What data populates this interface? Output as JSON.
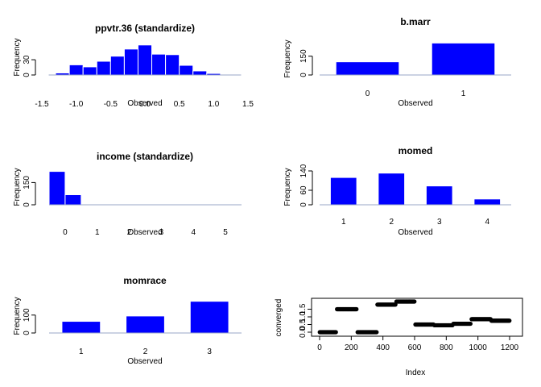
{
  "chart_data": [
    {
      "type": "bar",
      "title": "ppvtr.36 (standardize)",
      "xlabel": "Observed",
      "ylabel": "Frequency",
      "xlim": [
        -1.5,
        1.5
      ],
      "ylim": [
        0,
        65
      ],
      "xticks": [
        -1.5,
        -1.0,
        -0.5,
        0.0,
        0.5,
        1.0,
        1.5
      ],
      "xtick_labels": [
        "-1.5",
        "-1.0",
        "-0.5",
        "0.0",
        "0.5",
        "1.0",
        "1.5"
      ],
      "yticks": [
        0,
        30
      ],
      "bins": [
        {
          "from": -1.4,
          "to": -1.3,
          "value": 0
        },
        {
          "from": -1.3,
          "to": -1.1,
          "value": 4
        },
        {
          "from": -1.1,
          "to": -0.9,
          "value": 20
        },
        {
          "from": -0.9,
          "to": -0.7,
          "value": 16
        },
        {
          "from": -0.7,
          "to": -0.5,
          "value": 27
        },
        {
          "from": -0.5,
          "to": -0.3,
          "value": 37
        },
        {
          "from": -0.3,
          "to": -0.1,
          "value": 51
        },
        {
          "from": -0.1,
          "to": 0.1,
          "value": 59
        },
        {
          "from": 0.1,
          "to": 0.3,
          "value": 41
        },
        {
          "from": 0.3,
          "to": 0.5,
          "value": 40
        },
        {
          "from": 0.5,
          "to": 0.7,
          "value": 19
        },
        {
          "from": 0.7,
          "to": 0.9,
          "value": 8
        },
        {
          "from": 0.9,
          "to": 1.1,
          "value": 3
        },
        {
          "from": 1.1,
          "to": 1.4,
          "value": 0
        }
      ]
    },
    {
      "type": "bar",
      "title": "b.marr",
      "xlabel": "Observed",
      "ylabel": "Frequency",
      "categories": [
        "0",
        "1"
      ],
      "values": [
        105,
        255
      ],
      "ylim": [
        0,
        270
      ],
      "yticks": [
        0,
        150
      ]
    },
    {
      "type": "bar",
      "title": "income (standardize)",
      "xlabel": "Observed",
      "ylabel": "Frequency",
      "xlim": [
        -0.5,
        5.5
      ],
      "ylim": [
        0,
        250
      ],
      "xticks": [
        0,
        1,
        2,
        3,
        4,
        5
      ],
      "xtick_labels": [
        "0",
        "1",
        "2",
        "3",
        "4",
        "5"
      ],
      "yticks": [
        0,
        150
      ],
      "bins": [
        {
          "from": -0.5,
          "to": 0.0,
          "value": 225
        },
        {
          "from": 0.0,
          "to": 0.5,
          "value": 68
        },
        {
          "from": 0.5,
          "to": 5.5,
          "value": 0
        }
      ]
    },
    {
      "type": "bar",
      "title": "momed",
      "xlabel": "Observed",
      "ylabel": "Frequency",
      "categories": [
        "1",
        "2",
        "3",
        "4"
      ],
      "values": [
        113,
        131,
        78,
        24
      ],
      "ylim": [
        0,
        140
      ],
      "yticks": [
        0,
        60,
        140
      ]
    },
    {
      "type": "bar",
      "title": "momrace",
      "xlabel": "Observed",
      "ylabel": "Frequency",
      "categories": [
        "1",
        "2",
        "3"
      ],
      "values": [
        65,
        95,
        177
      ],
      "ylim": [
        0,
        180
      ],
      "yticks": [
        0,
        100
      ]
    },
    {
      "type": "scatter",
      "title": "",
      "xlabel": "Index",
      "ylabel": "converged",
      "xlim": [
        0,
        1200
      ],
      "ylim": [
        0,
        2.0
      ],
      "xticks": [
        0,
        200,
        400,
        600,
        800,
        1000,
        1200
      ],
      "yticks": [
        0.0,
        0.5,
        1.0,
        1.5
      ],
      "ytick_labels": [
        "0.0",
        "0.5",
        "1.0",
        "1.5"
      ],
      "segments": [
        {
          "from": 1,
          "to": 105,
          "y": 0.0
        },
        {
          "from": 110,
          "to": 235,
          "y": 1.5
        },
        {
          "from": 240,
          "to": 360,
          "y": 0.0
        },
        {
          "from": 365,
          "to": 480,
          "y": 1.8
        },
        {
          "from": 485,
          "to": 600,
          "y": 2.0
        },
        {
          "from": 605,
          "to": 720,
          "y": 0.5
        },
        {
          "from": 725,
          "to": 840,
          "y": 0.45
        },
        {
          "from": 845,
          "to": 955,
          "y": 0.55
        },
        {
          "from": 960,
          "to": 1080,
          "y": 0.85
        },
        {
          "from": 1085,
          "to": 1200,
          "y": 0.75
        }
      ]
    }
  ],
  "colors": {
    "bar_fill": "#0000ff",
    "bar_border": "#ffffff",
    "baseline": "#9aa7c7",
    "points": "#000000"
  }
}
